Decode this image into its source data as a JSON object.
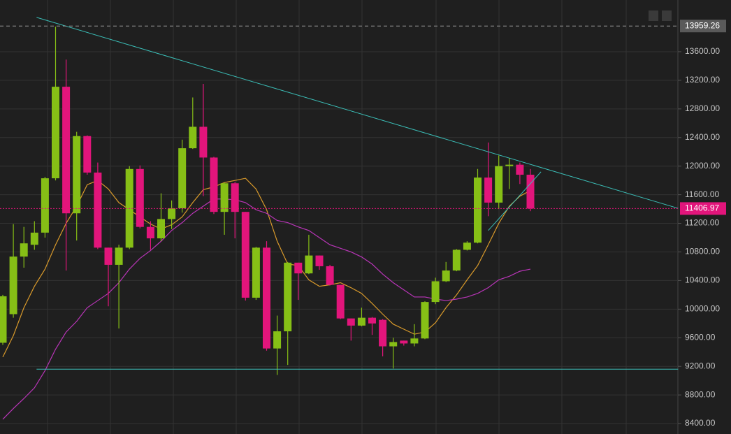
{
  "chart_data": {
    "type": "candlestick",
    "ylim": [
      8254,
      14323
    ],
    "yticks": [
      {
        "value": 8400,
        "label": "8400.00"
      },
      {
        "value": 8800,
        "label": "8800.00"
      },
      {
        "value": 9200,
        "label": "9200.00"
      },
      {
        "value": 9600,
        "label": "9600.00"
      },
      {
        "value": 10000,
        "label": "10000.00"
      },
      {
        "value": 10400,
        "label": "10400.00"
      },
      {
        "value": 10800,
        "label": "10800.00"
      },
      {
        "value": 11200,
        "label": "11200.00"
      },
      {
        "value": 11600,
        "label": "11600.00"
      },
      {
        "value": 12000,
        "label": "12000.00"
      },
      {
        "value": 12400,
        "label": "12400.00"
      },
      {
        "value": 12800,
        "label": "12800.00"
      },
      {
        "value": 13200,
        "label": "13200.00"
      },
      {
        "value": 13600,
        "label": "13600.00"
      }
    ],
    "grid": true,
    "up_color": "#86bf16",
    "down_color": "#e2157b",
    "open": [
      9530,
      9930,
      10735,
      10900,
      11070,
      11830,
      13110,
      11340,
      12420,
      11910,
      10860,
      10620,
      10860,
      11960,
      11150,
      10990,
      11260,
      11410,
      12250,
      12550,
      12120,
      11360,
      11760,
      11360,
      10160,
      10860,
      9450,
      9690,
      10650,
      10500,
      10750,
      10600,
      10340,
      9870,
      9770,
      9880,
      9850,
      9480,
      9560,
      9520,
      9590,
      10100,
      10390,
      10540,
      10830,
      10930,
      11840,
      11490,
      12000,
      12020,
      11880
    ],
    "high": [
      10200,
      11190,
      11150,
      11230,
      11850,
      13950,
      13490,
      12480,
      12430,
      12050,
      10860,
      10900,
      12000,
      12010,
      11230,
      11620,
      11520,
      12370,
      12960,
      13150,
      12130,
      11770,
      11780,
      11360,
      10870,
      10950,
      9910,
      10660,
      10650,
      11040,
      10750,
      10620,
      10340,
      9870,
      10020,
      9890,
      9860,
      9600,
      9560,
      9790,
      10110,
      10440,
      10660,
      10840,
      10950,
      11960,
      12330,
      12150,
      12110,
      12050,
      11960
    ],
    "low": [
      9500,
      9880,
      10580,
      10830,
      11000,
      11800,
      10540,
      10960,
      11880,
      10840,
      10040,
      9730,
      10840,
      11130,
      10830,
      10950,
      11120,
      11350,
      12240,
      11580,
      11330,
      11040,
      10990,
      10120,
      10130,
      9420,
      9080,
      9220,
      10130,
      10490,
      10550,
      10330,
      9860,
      9560,
      9760,
      9640,
      9340,
      9170,
      9490,
      9480,
      9580,
      10070,
      10380,
      10530,
      10820,
      10920,
      11300,
      11400,
      11680,
      11750,
      11370
    ],
    "close": [
      10180,
      10735,
      10920,
      11070,
      11830,
      13110,
      11340,
      12420,
      11910,
      10860,
      10620,
      10860,
      11960,
      11150,
      10990,
      11260,
      11410,
      12250,
      12550,
      12120,
      11360,
      11760,
      11360,
      10160,
      10860,
      9450,
      9690,
      10650,
      10500,
      10750,
      10600,
      10340,
      9870,
      9770,
      9880,
      9800,
      9480,
      9540,
      9520,
      9590,
      10100,
      10390,
      10540,
      10830,
      10930,
      11840,
      11490,
      12000,
      12020,
      11880,
      11407
    ],
    "lines": [
      {
        "color": "#d99a2b",
        "values": [
          9330,
          9630,
          10020,
          10320,
          10560,
          10900,
          11200,
          11440,
          11740,
          11800,
          11680,
          11490,
          11390,
          11290,
          11190,
          11120,
          11180,
          11290,
          11490,
          11670,
          11710,
          11770,
          11800,
          11830,
          11680,
          11390,
          10950,
          10630,
          10610,
          10410,
          10320,
          10340,
          10370,
          10300,
          10220,
          10080,
          9930,
          9790,
          9720,
          9650,
          9680,
          9810,
          10020,
          10200,
          10410,
          10610,
          10900,
          11200,
          11440,
          11580,
          11660
        ]
      },
      {
        "color": "#b935b8",
        "values": [
          8460,
          8610,
          8750,
          8900,
          9140,
          9440,
          9680,
          9830,
          10020,
          10120,
          10220,
          10370,
          10560,
          10710,
          10820,
          10950,
          11100,
          11210,
          11340,
          11440,
          11540,
          11540,
          11530,
          11490,
          11390,
          11340,
          11240,
          11210,
          11150,
          11100,
          11000,
          10900,
          10850,
          10800,
          10730,
          10630,
          10490,
          10370,
          10270,
          10170,
          10170,
          10140,
          10120,
          10140,
          10170,
          10220,
          10300,
          10410,
          10460,
          10530,
          10560
        ]
      }
    ],
    "trendlines": [
      {
        "color": "#3bbfb8",
        "start": [
          3.2,
          14080
        ],
        "end": [
          64,
          11410
        ]
      },
      {
        "color": "#3bbfb8",
        "start": [
          3.2,
          9160
        ],
        "end": [
          64,
          9160
        ]
      },
      {
        "color": "#3bbfb8",
        "start": [
          46,
          11100
        ],
        "end": [
          51,
          11920
        ]
      }
    ],
    "price_lines": [
      {
        "value": 13959.26,
        "color": "#9a9a9a"
      },
      {
        "value": 11406.97,
        "color": "#e2157b"
      }
    ]
  }
}
